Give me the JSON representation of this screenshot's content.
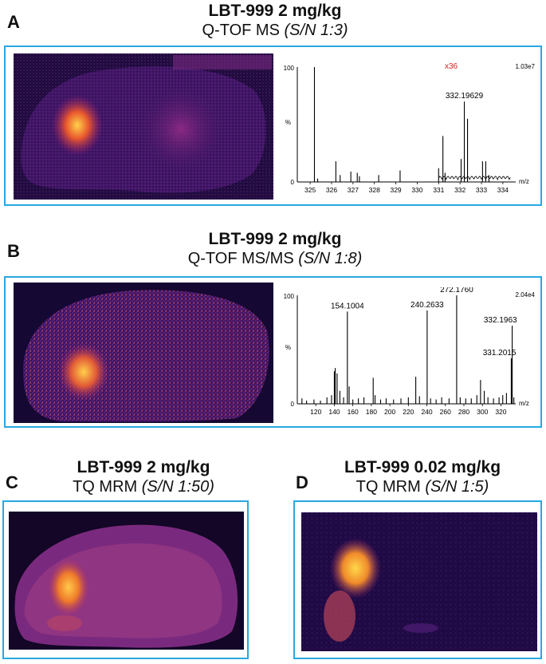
{
  "colors": {
    "frame": "#29a8e0",
    "bg_dark": "#1a0a33",
    "multiplier": "#d62020"
  },
  "panels": {
    "A": {
      "letter": "A",
      "title_line1": "LBT-999 2 mg/kg",
      "title_line2_plain": "Q-TOF MS",
      "title_line2_italic": "(S/N 1:3)",
      "spectrum": {
        "y_top_label": "100",
        "y_zero_label": "0",
        "y_axis_label": "%",
        "intensity_label": "1.03e7",
        "zoom_label": "x36",
        "x_label": "m/z",
        "xlim": [
          324.4,
          334.6
        ],
        "x_ticks": [
          "325",
          "326",
          "327",
          "328",
          "329",
          "330",
          "331",
          "332",
          "333",
          "334"
        ],
        "peak_label": "332.19629",
        "peaks": [
          [
            325.2,
            100
          ],
          [
            325.35,
            3
          ],
          [
            326.2,
            18
          ],
          [
            326.4,
            6
          ],
          [
            326.9,
            9
          ],
          [
            327.2,
            8
          ],
          [
            327.3,
            5
          ],
          [
            328.2,
            6
          ],
          [
            329.2,
            10
          ],
          [
            331.0,
            12
          ],
          [
            331.2,
            40
          ],
          [
            331.3,
            8
          ],
          [
            332.05,
            20
          ],
          [
            332.2,
            70
          ],
          [
            332.35,
            55
          ],
          [
            333.05,
            18
          ],
          [
            333.2,
            18
          ],
          [
            333.35,
            6
          ]
        ]
      }
    },
    "B": {
      "letter": "B",
      "title_line1": "LBT-999 2 mg/kg",
      "title_line2_plain": "Q-TOF MS/MS",
      "title_line2_italic": "(S/N 1:8)",
      "spectrum": {
        "y_top_label": "100",
        "y_zero_label": "0",
        "y_axis_label": "%",
        "intensity_label": "2.04e4",
        "x_label": "m/z",
        "xlim": [
          100,
          336
        ],
        "x_ticks": [
          "120",
          "140",
          "160",
          "180",
          "200",
          "220",
          "240",
          "260",
          "280",
          "300",
          "320"
        ],
        "peak_labels": [
          {
            "text": "154.1004",
            "x": 154.1,
            "y": 85
          },
          {
            "text": "240.2633",
            "x": 240.3,
            "y": 86
          },
          {
            "text": "272.1760",
            "x": 272.2,
            "y": 100
          },
          {
            "text": "332.1963",
            "x": 332.2,
            "y": 72
          },
          {
            "text": "331.2015",
            "x": 331.2,
            "y": 42
          }
        ],
        "peaks": [
          [
            105,
            5
          ],
          [
            110,
            3
          ],
          [
            118,
            4
          ],
          [
            125,
            3
          ],
          [
            132,
            6
          ],
          [
            137,
            8
          ],
          [
            140,
            30
          ],
          [
            141,
            33
          ],
          [
            143,
            28
          ],
          [
            146,
            12
          ],
          [
            150,
            6
          ],
          [
            154.1,
            85
          ],
          [
            156,
            16
          ],
          [
            160,
            4
          ],
          [
            166,
            5
          ],
          [
            172,
            6
          ],
          [
            182,
            24
          ],
          [
            184,
            8
          ],
          [
            190,
            4
          ],
          [
            196,
            5
          ],
          [
            204,
            4
          ],
          [
            212,
            5
          ],
          [
            220,
            6
          ],
          [
            228,
            25
          ],
          [
            232,
            7
          ],
          [
            240.3,
            86
          ],
          [
            244,
            5
          ],
          [
            250,
            4
          ],
          [
            256,
            6
          ],
          [
            264,
            5
          ],
          [
            272.2,
            100
          ],
          [
            276,
            6
          ],
          [
            282,
            5
          ],
          [
            288,
            5
          ],
          [
            294,
            8
          ],
          [
            298,
            22
          ],
          [
            302,
            12
          ],
          [
            306,
            6
          ],
          [
            312,
            5
          ],
          [
            318,
            6
          ],
          [
            322,
            8
          ],
          [
            326,
            10
          ],
          [
            331.2,
            42
          ],
          [
            332.2,
            72
          ],
          [
            334,
            6
          ]
        ]
      }
    },
    "C": {
      "letter": "C",
      "title_line1": "LBT-999 2 mg/kg",
      "title_line2_plain": "TQ MRM",
      "title_line2_italic": "(S/N 1:50)"
    },
    "D": {
      "letter": "D",
      "title_line1": "LBT-999 0.02 mg/kg",
      "title_line2_plain": "TQ MRM",
      "title_line2_italic": "(S/N 1:5)"
    }
  }
}
